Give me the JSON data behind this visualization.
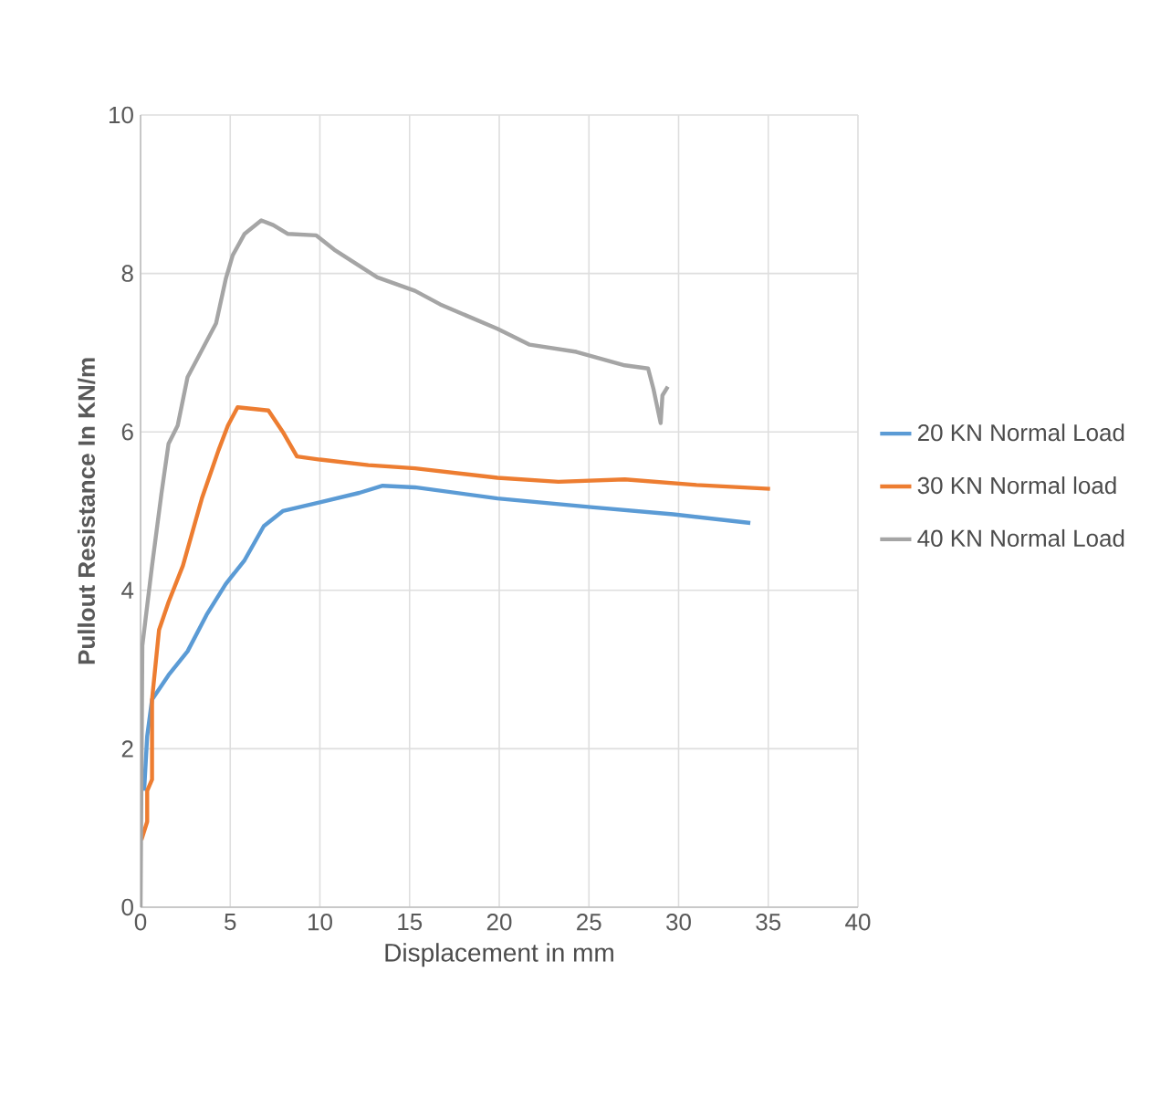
{
  "chart_data": {
    "type": "line",
    "xlabel": "Displacement in mm",
    "ylabel": "Pullout Resistance In KN/m",
    "xlim": [
      0,
      40
    ],
    "ylim": [
      0,
      10
    ],
    "xticks": [
      0,
      5,
      10,
      15,
      20,
      25,
      30,
      35,
      40
    ],
    "yticks": [
      0,
      2,
      4,
      6,
      8,
      10
    ],
    "grid": true,
    "legend": "right",
    "marker": "none",
    "line_style": "solid",
    "series": [
      {
        "name": "20 KN Normal Load",
        "color": "#5b9bd5",
        "x": [
          0.2,
          0.37,
          0.64,
          1.56,
          2.62,
          3.68,
          4.75,
          5.8,
          6.87,
          7.93,
          10.0,
          12.2,
          13.5,
          15.3,
          19.9,
          25.1,
          29.7,
          34.0
        ],
        "values": [
          1.47,
          2.16,
          2.62,
          2.93,
          3.23,
          3.69,
          4.08,
          4.38,
          4.81,
          5.0,
          5.11,
          5.23,
          5.32,
          5.3,
          5.16,
          5.05,
          4.96,
          4.85
        ]
      },
      {
        "name": "30 KN Normal load",
        "color": "#ed7d31",
        "x": [
          0.05,
          0.37,
          0.37,
          0.64,
          0.64,
          1.03,
          1.56,
          2.36,
          3.42,
          4.35,
          4.87,
          5.41,
          7.13,
          7.93,
          8.72,
          10.0,
          12.7,
          15.3,
          19.9,
          23.3,
          27.0,
          31.0,
          35.1
        ],
        "values": [
          0.85,
          1.08,
          1.47,
          1.61,
          2.62,
          3.5,
          3.85,
          4.31,
          5.16,
          5.77,
          6.08,
          6.31,
          6.27,
          6.0,
          5.69,
          5.65,
          5.58,
          5.54,
          5.42,
          5.37,
          5.4,
          5.33,
          5.28
        ]
      },
      {
        "name": "40 KN Normal Load",
        "color": "#a5a5a5",
        "x": [
          0,
          0.1,
          0.64,
          1.17,
          1.56,
          2.07,
          2.62,
          3.16,
          4.21,
          4.75,
          5.14,
          5.8,
          6.73,
          7.4,
          8.2,
          9.8,
          10.8,
          13.2,
          15.3,
          16.7,
          19.9,
          21.7,
          24.3,
          27.0,
          28.3,
          28.6,
          29.0,
          29.1,
          29.4
        ],
        "values": [
          0,
          3.3,
          4.31,
          5.23,
          5.85,
          6.08,
          6.69,
          6.92,
          7.37,
          7.93,
          8.23,
          8.5,
          8.67,
          8.61,
          8.5,
          8.48,
          8.3,
          7.95,
          7.78,
          7.61,
          7.3,
          7.1,
          7.01,
          6.84,
          6.8,
          6.54,
          6.11,
          6.46,
          6.57
        ]
      }
    ]
  }
}
